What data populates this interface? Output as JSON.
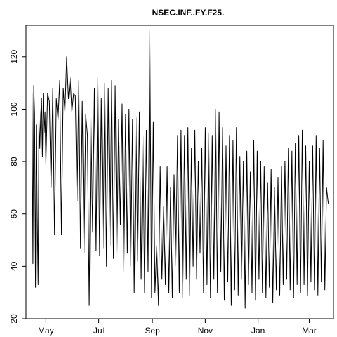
{
  "chart_data": {
    "type": "line",
    "title": "NSEC.INF..FY.F25.",
    "xlabel": "",
    "ylabel": "",
    "x_range": [
      "2014-04-08",
      "2015-03-29"
    ],
    "ylim": [
      20,
      132
    ],
    "x_ticks": [
      {
        "date": "2014-05-01",
        "label": "May"
      },
      {
        "date": "2014-07-01",
        "label": "Jul"
      },
      {
        "date": "2014-09-01",
        "label": "Sep"
      },
      {
        "date": "2014-11-01",
        "label": "Nov"
      },
      {
        "date": "2015-01-01",
        "label": "Jan"
      },
      {
        "date": "2015-03-01",
        "label": "Mar"
      }
    ],
    "y_ticks": [
      20,
      40,
      60,
      80,
      100,
      120
    ],
    "grid": false,
    "legend": "none",
    "line_color": "#000000",
    "series": [
      {
        "x": [
          "2014-04-15",
          "2014-04-16",
          "2014-04-17",
          "2014-04-18",
          "2014-04-19",
          "2014-04-20",
          "2014-04-21",
          "2014-04-22",
          "2014-04-23",
          "2014-04-24",
          "2014-04-25",
          "2014-04-26",
          "2014-04-27",
          "2014-04-28",
          "2014-04-29",
          "2014-04-30",
          "2014-05-01",
          "2014-05-03",
          "2014-05-05",
          "2014-05-07",
          "2014-05-09",
          "2014-05-11",
          "2014-05-13",
          "2014-05-15",
          "2014-05-17",
          "2014-05-19",
          "2014-05-21",
          "2014-05-23",
          "2014-05-25",
          "2014-05-27",
          "2014-05-29",
          "2014-05-31",
          "2014-06-02",
          "2014-06-04",
          "2014-06-06",
          "2014-06-08",
          "2014-06-10",
          "2014-06-12",
          "2014-06-14",
          "2014-06-16",
          "2014-06-18",
          "2014-06-20",
          "2014-06-22",
          "2014-06-24",
          "2014-06-26",
          "2014-06-28",
          "2014-06-30",
          "2014-07-02",
          "2014-07-04",
          "2014-07-06",
          "2014-07-08",
          "2014-07-10",
          "2014-07-12",
          "2014-07-14",
          "2014-07-16",
          "2014-07-18",
          "2014-07-20",
          "2014-07-22",
          "2014-07-24",
          "2014-07-26",
          "2014-07-28",
          "2014-07-30",
          "2014-08-01",
          "2014-08-03",
          "2014-08-05",
          "2014-08-07",
          "2014-08-09",
          "2014-08-11",
          "2014-08-13",
          "2014-08-15",
          "2014-08-17",
          "2014-08-19",
          "2014-08-21",
          "2014-08-23",
          "2014-08-25",
          "2014-08-27",
          "2014-08-29",
          "2014-08-31",
          "2014-09-02",
          "2014-09-04",
          "2014-09-06",
          "2014-09-08",
          "2014-09-10",
          "2014-09-12",
          "2014-09-14",
          "2014-09-16",
          "2014-09-18",
          "2014-09-20",
          "2014-09-22",
          "2014-09-24",
          "2014-09-26",
          "2014-09-28",
          "2014-09-30",
          "2014-10-02",
          "2014-10-04",
          "2014-10-06",
          "2014-10-08",
          "2014-10-10",
          "2014-10-12",
          "2014-10-14",
          "2014-10-16",
          "2014-10-18",
          "2014-10-20",
          "2014-10-22",
          "2014-10-24",
          "2014-10-26",
          "2014-10-28",
          "2014-10-30",
          "2014-11-01",
          "2014-11-03",
          "2014-11-05",
          "2014-11-07",
          "2014-11-09",
          "2014-11-11",
          "2014-11-13",
          "2014-11-15",
          "2014-11-17",
          "2014-11-19",
          "2014-11-21",
          "2014-11-23",
          "2014-11-25",
          "2014-11-27",
          "2014-11-29",
          "2014-12-01",
          "2014-12-03",
          "2014-12-05",
          "2014-12-07",
          "2014-12-09",
          "2014-12-11",
          "2014-12-13",
          "2014-12-15",
          "2014-12-17",
          "2014-12-19",
          "2014-12-21",
          "2014-12-23",
          "2014-12-25",
          "2014-12-27",
          "2014-12-29",
          "2014-12-31",
          "2015-01-02",
          "2015-01-04",
          "2015-01-06",
          "2015-01-08",
          "2015-01-10",
          "2015-01-12",
          "2015-01-14",
          "2015-01-16",
          "2015-01-18",
          "2015-01-20",
          "2015-01-22",
          "2015-01-24",
          "2015-01-26",
          "2015-01-28",
          "2015-01-30",
          "2015-02-01",
          "2015-02-03",
          "2015-02-05",
          "2015-02-07",
          "2015-02-09",
          "2015-02-11",
          "2015-02-13",
          "2015-02-15",
          "2015-02-17",
          "2015-02-19",
          "2015-02-21",
          "2015-02-23",
          "2015-02-25",
          "2015-02-27",
          "2015-03-01",
          "2015-03-03",
          "2015-03-05",
          "2015-03-07",
          "2015-03-09",
          "2015-03-11",
          "2015-03-13",
          "2015-03-15",
          "2015-03-17",
          "2015-03-19",
          "2015-03-21",
          "2015-03-23"
        ],
        "y": [
          106,
          41,
          109,
          98,
          32,
          94,
          60,
          33,
          96,
          85,
          98,
          104,
          82,
          106,
          91,
          99,
          79,
          106,
          103,
          70,
          108,
          52,
          104,
          96,
          111,
          52,
          108,
          99,
          120,
          104,
          112,
          99,
          106,
          105,
          65,
          111,
          47,
          103,
          45,
          98,
          90,
          25,
          97,
          53,
          108,
          46,
          112,
          44,
          104,
          47,
          110,
          40,
          108,
          48,
          111,
          43,
          109,
          44,
          96,
          56,
          102,
          38,
          98,
          45,
          100,
          40,
          96,
          30,
          97,
          42,
          99,
          35,
          90,
          30,
          92,
          38,
          130,
          28,
          95,
          30,
          48,
          25,
          78,
          35,
          63,
          33,
          78,
          30,
          70,
          28,
          75,
          40,
          90,
          30,
          92,
          28,
          90,
          35,
          93,
          29,
          85,
          40,
          92,
          35,
          80,
          45,
          85,
          30,
          93,
          33,
          91,
          28,
          90,
          35,
          100,
          30,
          99,
          38,
          93,
          27,
          86,
          34,
          90,
          25,
          88,
          31,
          93,
          29,
          82,
          35,
          80,
          24,
          84,
          33,
          76,
          30,
          88,
          27,
          84,
          35,
          80,
          30,
          78,
          28,
          72,
          32,
          77,
          26,
          70,
          31,
          74,
          29,
          78,
          33,
          80,
          35,
          85,
          31,
          84,
          28,
          87,
          33,
          90,
          30,
          92,
          33,
          86,
          29,
          80,
          34,
          86,
          31,
          90,
          29,
          85,
          34,
          88,
          31,
          70,
          64
        ]
      }
    ]
  }
}
